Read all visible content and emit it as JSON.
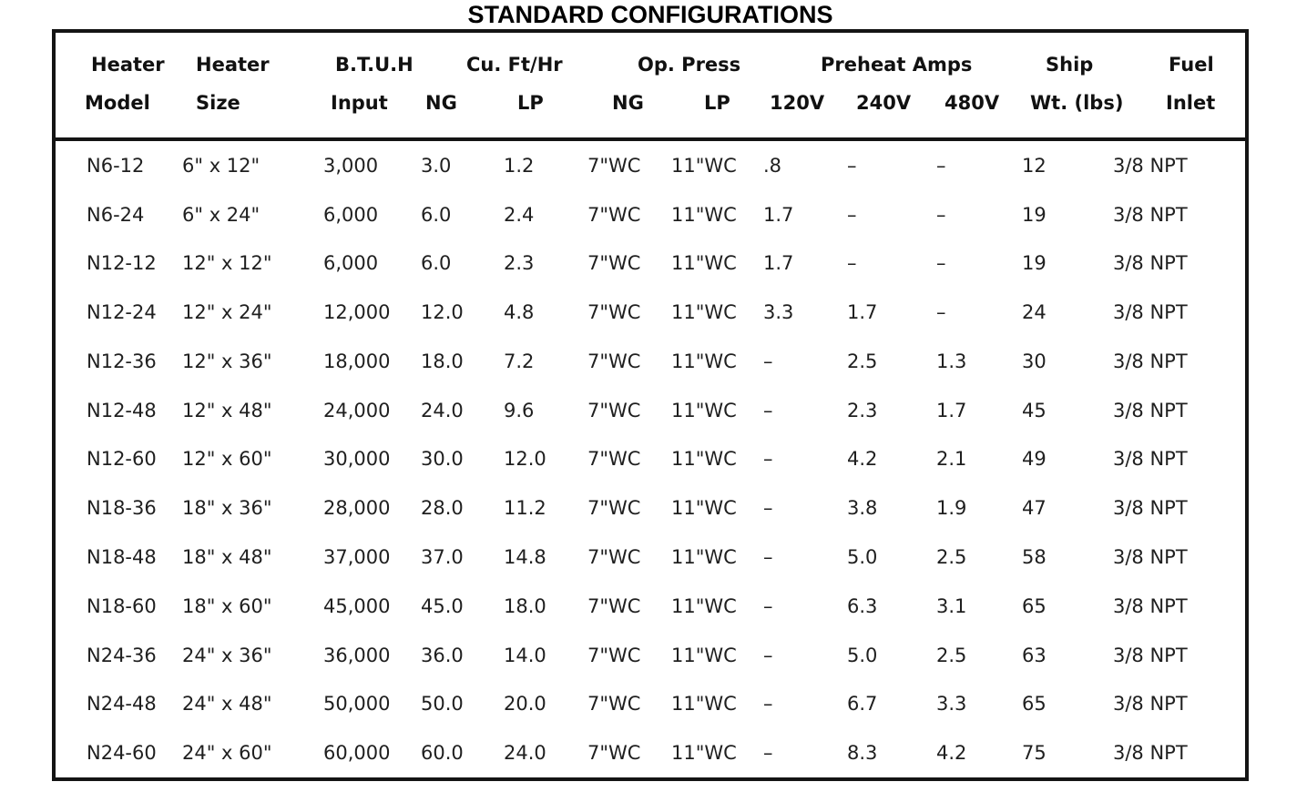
{
  "title": "STANDARD CONFIGURATIONS",
  "colors": {
    "text": "#1f1f1f",
    "border": "#141414",
    "background": "#ffffff"
  },
  "table": {
    "groups": {
      "heater_model": {
        "line1": "Heater",
        "line2": "Model"
      },
      "heater_size": {
        "line1": "Heater",
        "line2": "Size"
      },
      "btuh_input": {
        "line1": "B.T.U.H",
        "line2": "Input"
      },
      "cu_ft_hr": {
        "label": "Cu. Ft/Hr",
        "sub": {
          "ng": "NG",
          "lp": "LP"
        }
      },
      "op_press": {
        "label": "Op. Press",
        "sub": {
          "ng": "NG",
          "lp": "LP"
        }
      },
      "preheat_amps": {
        "label": "Preheat Amps",
        "sub": {
          "v120": "120V",
          "v240": "240V",
          "v480": "480V"
        }
      },
      "ship_wt": {
        "line1": "Ship",
        "line2": "Wt. (lbs)"
      },
      "fuel_inlet": {
        "line1": "Fuel",
        "line2": "Inlet"
      }
    },
    "rows": [
      {
        "model": "N6-12",
        "size": "6\" x 12\"",
        "btuh": "3,000",
        "cuft_ng": "3.0",
        "cuft_lp": "1.2",
        "op_ng": "7\"WC",
        "op_lp": "11\"WC",
        "amp120": ".8",
        "amp240": "–",
        "amp480": "–",
        "ship_wt": "12",
        "fuel_inlet": "3/8 NPT"
      },
      {
        "model": "N6-24",
        "size": "6\" x 24\"",
        "btuh": "6,000",
        "cuft_ng": "6.0",
        "cuft_lp": "2.4",
        "op_ng": "7\"WC",
        "op_lp": "11\"WC",
        "amp120": "1.7",
        "amp240": "–",
        "amp480": "–",
        "ship_wt": "19",
        "fuel_inlet": "3/8 NPT"
      },
      {
        "model": "N12-12",
        "size": "12\" x 12\"",
        "btuh": "6,000",
        "cuft_ng": "6.0",
        "cuft_lp": "2.3",
        "op_ng": "7\"WC",
        "op_lp": "11\"WC",
        "amp120": "1.7",
        "amp240": "–",
        "amp480": "–",
        "ship_wt": "19",
        "fuel_inlet": "3/8 NPT"
      },
      {
        "model": "N12-24",
        "size": "12\" x 24\"",
        "btuh": "12,000",
        "cuft_ng": "12.0",
        "cuft_lp": "4.8",
        "op_ng": "7\"WC",
        "op_lp": "11\"WC",
        "amp120": "3.3",
        "amp240": "1.7",
        "amp480": "–",
        "ship_wt": "24",
        "fuel_inlet": "3/8 NPT"
      },
      {
        "model": "N12-36",
        "size": "12\" x 36\"",
        "btuh": "18,000",
        "cuft_ng": "18.0",
        "cuft_lp": "7.2",
        "op_ng": "7\"WC",
        "op_lp": "11\"WC",
        "amp120": "–",
        "amp240": "2.5",
        "amp480": "1.3",
        "ship_wt": "30",
        "fuel_inlet": "3/8 NPT"
      },
      {
        "model": "N12-48",
        "size": "12\" x 48\"",
        "btuh": "24,000",
        "cuft_ng": "24.0",
        "cuft_lp": "9.6",
        "op_ng": "7\"WC",
        "op_lp": "11\"WC",
        "amp120": "–",
        "amp240": "2.3",
        "amp480": "1.7",
        "ship_wt": "45",
        "fuel_inlet": "3/8 NPT"
      },
      {
        "model": "N12-60",
        "size": "12\" x 60\"",
        "btuh": "30,000",
        "cuft_ng": "30.0",
        "cuft_lp": "12.0",
        "op_ng": "7\"WC",
        "op_lp": "11\"WC",
        "amp120": "–",
        "amp240": "4.2",
        "amp480": "2.1",
        "ship_wt": "49",
        "fuel_inlet": "3/8 NPT"
      },
      {
        "model": "N18-36",
        "size": "18\" x 36\"",
        "btuh": "28,000",
        "cuft_ng": "28.0",
        "cuft_lp": "11.2",
        "op_ng": "7\"WC",
        "op_lp": "11\"WC",
        "amp120": "–",
        "amp240": "3.8",
        "amp480": "1.9",
        "ship_wt": "47",
        "fuel_inlet": "3/8 NPT"
      },
      {
        "model": "N18-48",
        "size": "18\" x 48\"",
        "btuh": "37,000",
        "cuft_ng": "37.0",
        "cuft_lp": "14.8",
        "op_ng": "7\"WC",
        "op_lp": "11\"WC",
        "amp120": "–",
        "amp240": "5.0",
        "amp480": "2.5",
        "ship_wt": "58",
        "fuel_inlet": "3/8 NPT"
      },
      {
        "model": "N18-60",
        "size": "18\" x 60\"",
        "btuh": "45,000",
        "cuft_ng": "45.0",
        "cuft_lp": "18.0",
        "op_ng": "7\"WC",
        "op_lp": "11\"WC",
        "amp120": "–",
        "amp240": "6.3",
        "amp480": "3.1",
        "ship_wt": "65",
        "fuel_inlet": "3/8 NPT"
      },
      {
        "model": "N24-36",
        "size": "24\" x 36\"",
        "btuh": "36,000",
        "cuft_ng": "36.0",
        "cuft_lp": "14.0",
        "op_ng": "7\"WC",
        "op_lp": "11\"WC",
        "amp120": "–",
        "amp240": "5.0",
        "amp480": "2.5",
        "ship_wt": "63",
        "fuel_inlet": "3/8 NPT"
      },
      {
        "model": "N24-48",
        "size": "24\" x 48\"",
        "btuh": "50,000",
        "cuft_ng": "50.0",
        "cuft_lp": "20.0",
        "op_ng": "7\"WC",
        "op_lp": "11\"WC",
        "amp120": "–",
        "amp240": "6.7",
        "amp480": "3.3",
        "ship_wt": "65",
        "fuel_inlet": "3/8 NPT"
      },
      {
        "model": "N24-60",
        "size": "24\" x 60\"",
        "btuh": "60,000",
        "cuft_ng": "60.0",
        "cuft_lp": "24.0",
        "op_ng": "7\"WC",
        "op_lp": "11\"WC",
        "amp120": "–",
        "amp240": "8.3",
        "amp480": "4.2",
        "ship_wt": "75",
        "fuel_inlet": "3/8 NPT"
      }
    ]
  }
}
